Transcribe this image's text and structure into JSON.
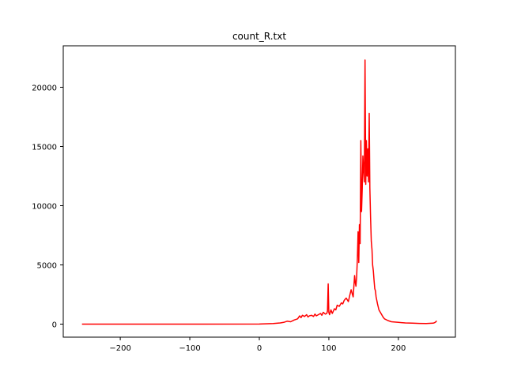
{
  "chart_data": {
    "type": "line",
    "title": "count_R.txt",
    "xlabel": "",
    "ylabel": "",
    "xlim": [
      -282,
      282
    ],
    "ylim": [
      -1100,
      23500
    ],
    "xticks": [
      -200,
      -100,
      0,
      100,
      200
    ],
    "yticks": [
      0,
      5000,
      10000,
      15000,
      20000
    ],
    "xtick_labels": [
      "−200",
      "−100",
      "0",
      "100",
      "200"
    ],
    "ytick_labels": [
      "0",
      "5000",
      "10000",
      "15000",
      "20000"
    ],
    "grid": false,
    "series": [
      {
        "color": "#ff0000",
        "x": [
          -255,
          -200,
          -100,
          0,
          20,
          30,
          35,
          40,
          45,
          50,
          55,
          58,
          60,
          62,
          65,
          68,
          70,
          72,
          75,
          78,
          80,
          82,
          85,
          88,
          90,
          92,
          95,
          97,
          98,
          99,
          100,
          101,
          103,
          105,
          108,
          110,
          112,
          115,
          118,
          120,
          122,
          125,
          128,
          130,
          132,
          134,
          135,
          136,
          137,
          138,
          139,
          140,
          141,
          142,
          143,
          144,
          145,
          146,
          147,
          148,
          149,
          150,
          151,
          152,
          153,
          154,
          155,
          156,
          157,
          158,
          159,
          160,
          161,
          162,
          163,
          164,
          165,
          166,
          167,
          168,
          169,
          170,
          172,
          175,
          178,
          180,
          185,
          190,
          200,
          210,
          220,
          230,
          240,
          250,
          252,
          254,
          255
        ],
        "y": [
          0,
          0,
          0,
          10,
          50,
          100,
          150,
          250,
          200,
          350,
          450,
          700,
          550,
          750,
          650,
          800,
          600,
          700,
          750,
          650,
          850,
          700,
          800,
          900,
          750,
          1000,
          850,
          900,
          1100,
          3400,
          1000,
          800,
          1200,
          900,
          1300,
          1200,
          1600,
          1500,
          1800,
          1700,
          2000,
          2200,
          1900,
          2400,
          2900,
          2500,
          2300,
          3200,
          4100,
          3500,
          3200,
          4000,
          5500,
          7800,
          5200,
          8400,
          6800,
          15500,
          9500,
          11500,
          14200,
          13000,
          12000,
          22300,
          11800,
          15500,
          12500,
          14800,
          12000,
          17800,
          11500,
          9000,
          7000,
          6300,
          5000,
          4500,
          3700,
          3000,
          2800,
          2300,
          2000,
          1700,
          1200,
          900,
          600,
          450,
          300,
          200,
          150,
          100,
          80,
          60,
          50,
          80,
          120,
          200,
          280
        ]
      }
    ]
  }
}
